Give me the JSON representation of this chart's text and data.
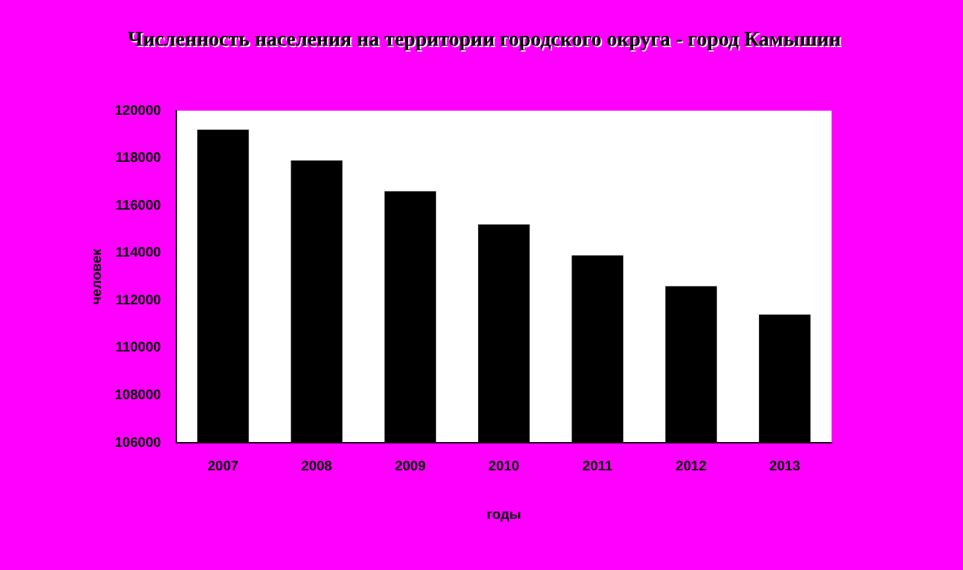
{
  "chart_data": {
    "type": "bar",
    "title": "Численность населения на территории городского округа - город Камышин",
    "xlabel": "годы",
    "ylabel": "человек",
    "categories": [
      "2007",
      "2008",
      "2009",
      "2010",
      "2011",
      "2012",
      "2013"
    ],
    "values": [
      119200,
      117900,
      116600,
      115200,
      113900,
      112600,
      111400
    ],
    "color": "#000000",
    "ylim": [
      106000,
      120000
    ],
    "yticks": [
      106000,
      108000,
      110000,
      112000,
      114000,
      116000,
      118000,
      120000
    ],
    "grid": false,
    "legend": false
  }
}
